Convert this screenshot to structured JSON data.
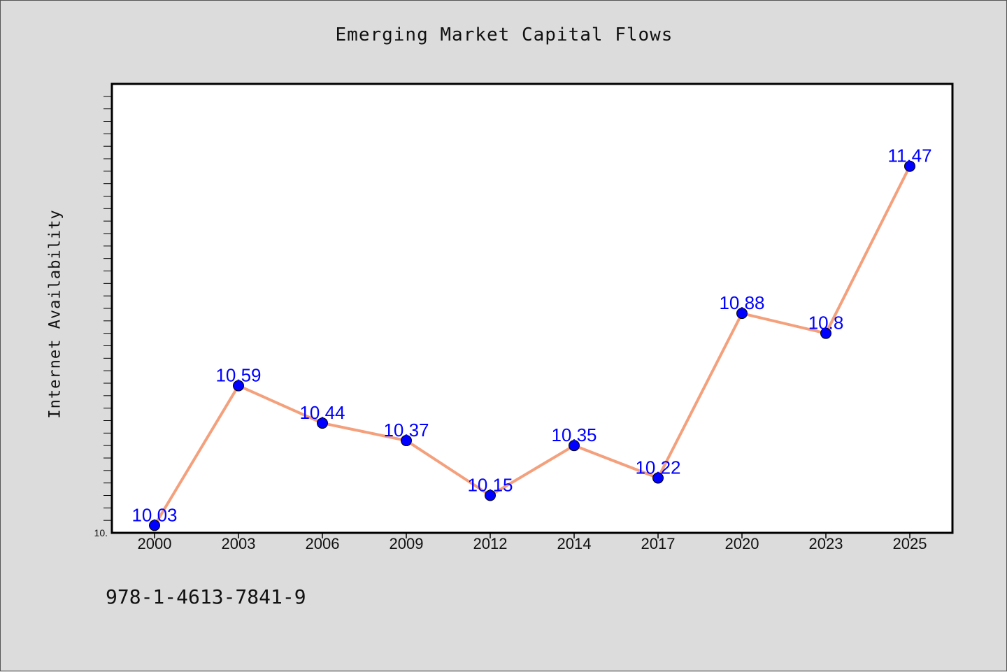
{
  "colors": {
    "background": "#dcdcdc",
    "plot_area": "#ffffff",
    "line": "#f4a07c",
    "marker": "#0000ff",
    "data_label": "#0000ff"
  },
  "footer": {
    "isbn": "978-1-4613-7841-9"
  },
  "chart_data": {
    "type": "line",
    "title": "Emerging Market Capital Flows",
    "xlabel": "",
    "ylabel": "Internet Availability",
    "categories": [
      "2000",
      "2003",
      "2006",
      "2009",
      "2012",
      "2014",
      "2017",
      "2020",
      "2023",
      "2025"
    ],
    "values": [
      10.03,
      10.59,
      10.44,
      10.37,
      10.15,
      10.35,
      10.22,
      10.88,
      10.8,
      11.47
    ],
    "data_labels": [
      "10.03",
      "10.59",
      "10.44",
      "10.37",
      "10.15",
      "10.35",
      "10.22",
      "10.88",
      "10.8",
      "11.47"
    ],
    "ylim": [
      10.0,
      11.8
    ],
    "y_tick_labels": [
      "10."
    ],
    "grid": false,
    "legend": "none"
  }
}
